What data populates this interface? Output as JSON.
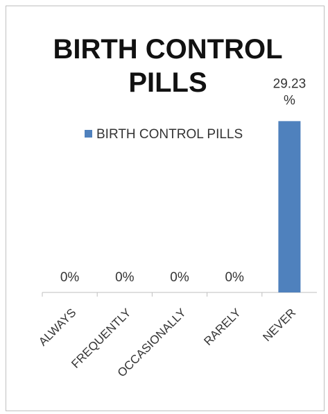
{
  "chart_data": {
    "type": "bar",
    "title": "BIRTH CONTROL PILLS",
    "title_lines": [
      "BIRTH CONTROL",
      "PILLS"
    ],
    "categories": [
      "ALWAYS",
      "FREQUENTLY",
      "OCCASIONALLY",
      "RARELY",
      "NEVER"
    ],
    "series": [
      {
        "name": "BIRTH CONTROL PILLS",
        "values": [
          0,
          0,
          0,
          0,
          29.23
        ],
        "value_labels": [
          "0%",
          "0%",
          "0%",
          "0%",
          "29.23 %"
        ],
        "color": "#4f81bd"
      }
    ],
    "ylim": [
      0,
      32
    ],
    "grid": false,
    "legend_position": "top",
    "axis_color": "#bfbfbf"
  }
}
